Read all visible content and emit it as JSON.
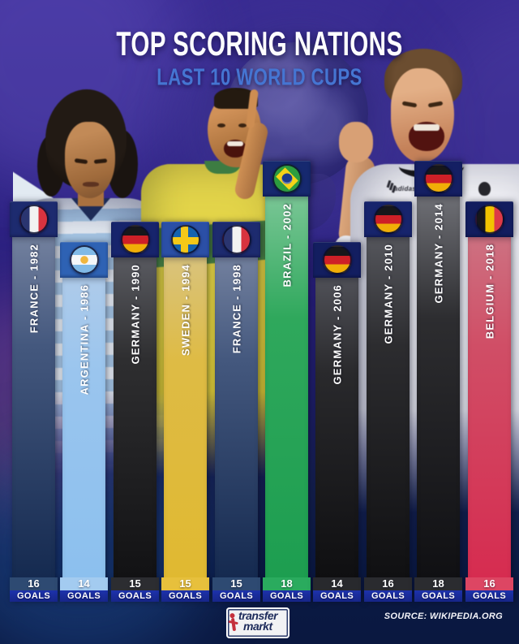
{
  "title": "TOP SCORING NATIONS",
  "subtitle": "LAST 10 WORLD CUPS",
  "source": "SOURCE: WIKIPEDIA.ORG",
  "goals_word": "GOALS",
  "logo": {
    "line1": "transfer",
    "line2": "markt"
  },
  "photos": {
    "adidas_text": "adidas"
  },
  "colors": {
    "background_top": "#392b92",
    "background_bottom": "#0a1840",
    "goals_strip": "#1d32ac",
    "title": "#ffffff",
    "subtitle": "#4575d2"
  },
  "chart_data": {
    "type": "bar",
    "title": "TOP SCORING NATIONS",
    "subtitle": "LAST 10 WORLD CUPS",
    "ylabel": "GOALS",
    "ylim": [
      0,
      18
    ],
    "categories": [
      "FRANCE - 1982",
      "ARGENTINA - 1986",
      "GERMANY - 1990",
      "SWEDEN - 1994",
      "FRANCE - 1998",
      "BRAZIL - 2002",
      "GERMANY - 2006",
      "GERMANY - 2010",
      "GERMANY - 2014",
      "BELGIUM - 2018"
    ],
    "values": [
      16,
      14,
      15,
      15,
      15,
      18,
      14,
      16,
      18,
      16
    ],
    "bars": [
      {
        "label": "FRANCE - 1982",
        "country": "France",
        "year": 1982,
        "goals": 16,
        "flag": "france",
        "colors": {
          "header": "#1d2b6f",
          "body_top": "#72809e",
          "body_mid": "#44587e",
          "body_bottom": "#152a50",
          "num": "#2e4a72"
        }
      },
      {
        "label": "ARGENTINA - 1986",
        "country": "Argentina",
        "year": 1986,
        "goals": 14,
        "flag": "argentina",
        "colors": {
          "header": "#2e62b4",
          "body_top": "#aecbea",
          "body_mid": "#9ac5ee",
          "body_bottom": "#8cc0ee",
          "num": "#a3cbf0"
        }
      },
      {
        "label": "GERMANY - 1990",
        "country": "Germany",
        "year": 1990,
        "goals": 15,
        "flag": "germany",
        "colors": {
          "header": "#17246c",
          "body_top": "#595a60",
          "body_mid": "#2e2e30",
          "body_bottom": "#121214",
          "num": "#2c2d31"
        }
      },
      {
        "label": "SWEDEN - 1994",
        "country": "Sweden",
        "year": 1994,
        "goals": 15,
        "flag": "sweden",
        "colors": {
          "header": "#2b4fa6",
          "body_top": "#d9c37c",
          "body_mid": "#debb45",
          "body_bottom": "#e0b931",
          "num": "#e7c03c"
        }
      },
      {
        "label": "FRANCE - 1998",
        "country": "France",
        "year": 1998,
        "goals": 15,
        "flag": "france",
        "colors": {
          "header": "#1d2b6f",
          "body_top": "#72809e",
          "body_mid": "#44587e",
          "body_bottom": "#152a50",
          "num": "#2e4a72"
        }
      },
      {
        "label": "BRAZIL - 2002",
        "country": "Brazil",
        "year": 2002,
        "goals": 18,
        "flag": "brazil",
        "colors": {
          "header": "#16296f",
          "body_top": "#79c695",
          "body_mid": "#2fa85c",
          "body_bottom": "#1d9e50",
          "num": "#2aab5e"
        }
      },
      {
        "label": "GERMANY - 2006",
        "country": "Germany",
        "year": 2006,
        "goals": 14,
        "flag": "germany",
        "colors": {
          "header": "#131e60",
          "body_top": "#505158",
          "body_mid": "#29292c",
          "body_bottom": "#0f0f11",
          "num": "#28292d"
        }
      },
      {
        "label": "GERMANY - 2010",
        "country": "Germany",
        "year": 2010,
        "goals": 16,
        "flag": "germany",
        "colors": {
          "header": "#17246c",
          "body_top": "#55565c",
          "body_mid": "#2c2c2f",
          "body_bottom": "#101012",
          "num": "#2a2b2f"
        }
      },
      {
        "label": "GERMANY - 2014",
        "country": "Germany",
        "year": 2014,
        "goals": 18,
        "flag": "germany",
        "colors": {
          "header": "#141f63",
          "body_top": "#6e6f75",
          "body_mid": "#2d2d30",
          "body_bottom": "#101013",
          "num": "#2b2c30"
        }
      },
      {
        "label": "BELGIUM - 2018",
        "country": "Belgium",
        "year": 2018,
        "goals": 16,
        "flag": "belgium",
        "colors": {
          "header": "#121d5e",
          "body_top": "#cd7181",
          "body_mid": "#d04e66",
          "body_bottom": "#d62c50",
          "num": "#dd4663"
        }
      }
    ]
  }
}
